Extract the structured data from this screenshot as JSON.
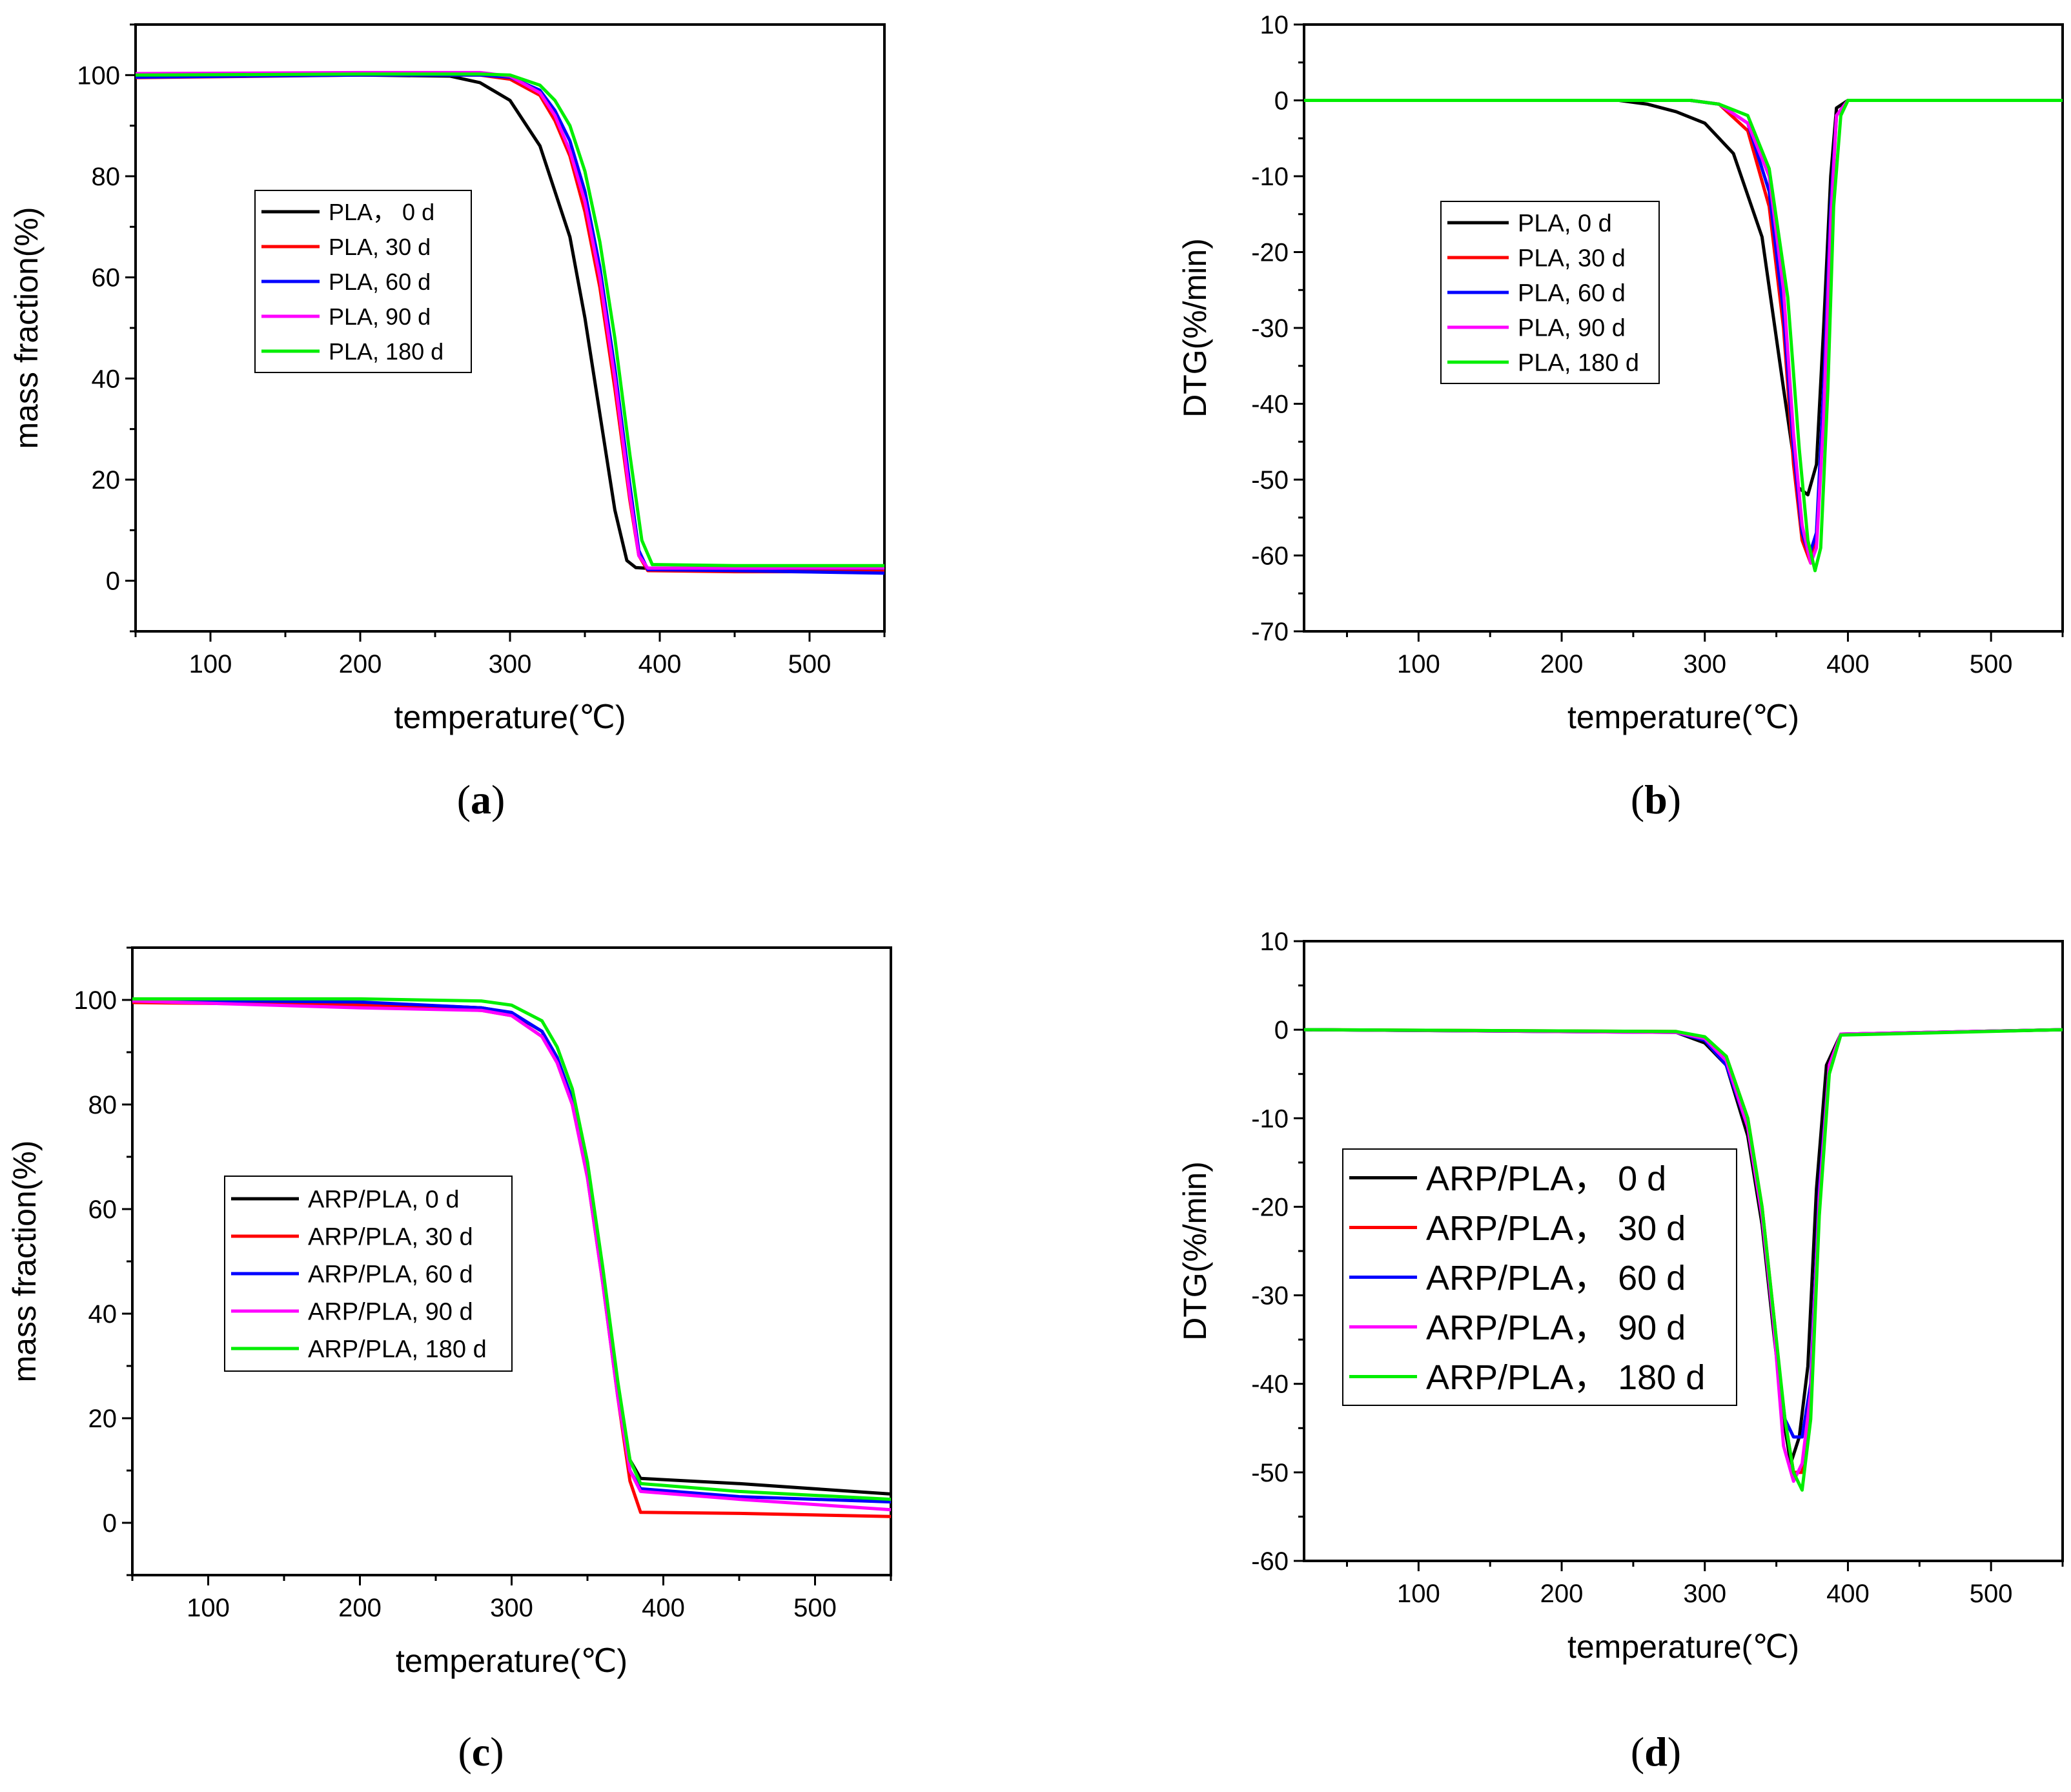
{
  "colors": {
    "0 d": "#000000",
    "30 d": "#ff0000",
    "60 d": "#0000ff",
    "90 d": "#ff00ff",
    "180 d": "#00ee00"
  },
  "chart_data": [
    {
      "id": "a",
      "caption": "a",
      "type": "line",
      "xlabel": "temperature(℃)",
      "ylabel": "mass fraction(%)",
      "xlim": [
        50,
        550
      ],
      "ylim": [
        -10,
        110
      ],
      "xticks": [
        100,
        200,
        300,
        400,
        500
      ],
      "yticks": [
        0,
        20,
        40,
        60,
        80,
        100
      ],
      "legend": "upper-left-center",
      "series": [
        {
          "name": "PLA， 0 d",
          "key": "0 d",
          "x": [
            50,
            200,
            260,
            280,
            300,
            320,
            340,
            350,
            360,
            370,
            378,
            384,
            390,
            450,
            550
          ],
          "y": [
            100,
            100,
            99.8,
            98.5,
            95,
            86,
            68,
            52,
            33,
            14,
            4,
            2.6,
            2.5,
            2.3,
            2.2
          ]
        },
        {
          "name": "PLA, 30 d",
          "key": "30 d",
          "x": [
            50,
            200,
            280,
            300,
            320,
            330,
            340,
            350,
            360,
            370,
            380,
            386,
            392,
            450,
            550
          ],
          "y": [
            99.5,
            100,
            100,
            99.2,
            96,
            91,
            84,
            73,
            58,
            38,
            16,
            5,
            2,
            1.8,
            1.8
          ]
        },
        {
          "name": "PLA, 60 d",
          "key": "60 d",
          "x": [
            50,
            200,
            280,
            300,
            320,
            330,
            340,
            350,
            360,
            370,
            380,
            386,
            392,
            450,
            550
          ],
          "y": [
            99.6,
            100,
            100,
            99.6,
            97,
            93,
            87,
            77,
            62,
            42,
            19,
            6,
            2.2,
            2,
            1.5
          ]
        },
        {
          "name": "PLA, 90 d",
          "key": "90 d",
          "x": [
            50,
            200,
            280,
            300,
            320,
            330,
            340,
            350,
            360,
            370,
            380,
            386,
            392,
            450,
            550
          ],
          "y": [
            100.3,
            100.5,
            100.5,
            99.8,
            96.5,
            92,
            85,
            75,
            60,
            40,
            17,
            5,
            2.5,
            2.5,
            2.5
          ]
        },
        {
          "name": "PLA, 180 d",
          "key": "180 d",
          "x": [
            50,
            200,
            280,
            300,
            320,
            330,
            340,
            350,
            360,
            370,
            380,
            388,
            395,
            450,
            550
          ],
          "y": [
            100,
            100.2,
            100.2,
            100,
            98,
            95,
            90,
            81,
            67,
            48,
            25,
            8,
            3.2,
            3,
            3
          ]
        }
      ]
    },
    {
      "id": "b",
      "caption": "b",
      "type": "line",
      "xlabel": "temperature(℃)",
      "ylabel": "DTG(%/min)",
      "xlim": [
        20,
        550
      ],
      "ylim": [
        -70,
        10
      ],
      "xticks": [
        100,
        200,
        300,
        400,
        500
      ],
      "yticks": [
        10,
        0,
        -10,
        -20,
        -30,
        -40,
        -50,
        -60,
        -70
      ],
      "legend": "upper-left-center",
      "series": [
        {
          "name": "PLA, 0 d",
          "key": "0 d",
          "x": [
            20,
            240,
            260,
            280,
            300,
            320,
            340,
            355,
            365,
            372,
            378,
            383,
            388,
            392,
            400,
            550
          ],
          "y": [
            0,
            0,
            -0.5,
            -1.5,
            -3,
            -7,
            -18,
            -38,
            -51,
            -52,
            -48,
            -30,
            -10,
            -1,
            0,
            0
          ]
        },
        {
          "name": "PLA, 30 d",
          "key": "30 d",
          "x": [
            20,
            290,
            310,
            330,
            345,
            355,
            362,
            368,
            374,
            378,
            383,
            388,
            392,
            400,
            550
          ],
          "y": [
            0,
            0,
            -0.5,
            -4,
            -14,
            -30,
            -48,
            -58,
            -61,
            -58,
            -40,
            -15,
            -2,
            0,
            0
          ]
        },
        {
          "name": "PLA, 60 d",
          "key": "60 d",
          "x": [
            20,
            290,
            310,
            330,
            345,
            355,
            362,
            368,
            373,
            378,
            383,
            388,
            392,
            400,
            550
          ],
          "y": [
            0,
            0,
            -0.5,
            -3,
            -12,
            -28,
            -46,
            -57,
            -60,
            -57,
            -38,
            -14,
            -2,
            0,
            0
          ]
        },
        {
          "name": "PLA, 90 d",
          "key": "90 d",
          "x": [
            20,
            290,
            310,
            330,
            345,
            355,
            362,
            368,
            374,
            378,
            383,
            388,
            392,
            400,
            550
          ],
          "y": [
            0,
            0,
            -0.5,
            -3,
            -10,
            -25,
            -44,
            -56,
            -61,
            -59,
            -42,
            -16,
            -2,
            0,
            0
          ]
        },
        {
          "name": "PLA, 180 d",
          "key": "180 d",
          "x": [
            20,
            290,
            310,
            330,
            345,
            358,
            366,
            372,
            377,
            381,
            386,
            390,
            395,
            400,
            550
          ],
          "y": [
            0,
            0,
            -0.5,
            -2,
            -9,
            -26,
            -46,
            -58,
            -62,
            -59,
            -38,
            -14,
            -2,
            0,
            0
          ]
        }
      ]
    },
    {
      "id": "c",
      "caption": "c",
      "type": "line",
      "xlabel": "temperature(℃)",
      "ylabel": "mass fraction(%)",
      "xlim": [
        50,
        550
      ],
      "ylim": [
        -10,
        110
      ],
      "xticks": [
        100,
        200,
        300,
        400,
        500
      ],
      "yticks": [
        0,
        20,
        40,
        60,
        80,
        100
      ],
      "legend": "center-left",
      "series": [
        {
          "name": "ARP/PLA, 0 d",
          "key": "0 d",
          "x": [
            50,
            200,
            280,
            300,
            320,
            330,
            340,
            350,
            360,
            370,
            378,
            385,
            450,
            550
          ],
          "y": [
            100,
            99.5,
            98.5,
            97.5,
            94,
            89,
            81,
            67,
            47,
            25,
            12,
            8.5,
            7.5,
            5.5
          ]
        },
        {
          "name": "ARP/PLA, 30 d",
          "key": "30 d",
          "x": [
            50,
            200,
            280,
            300,
            320,
            330,
            340,
            350,
            360,
            370,
            378,
            385,
            450,
            550
          ],
          "y": [
            99.5,
            99,
            98,
            97,
            93,
            88,
            80,
            66,
            46,
            24,
            8,
            2,
            1.8,
            1.2
          ]
        },
        {
          "name": "ARP/PLA, 60 d",
          "key": "60 d",
          "x": [
            50,
            200,
            280,
            300,
            320,
            330,
            340,
            350,
            360,
            370,
            378,
            385,
            450,
            550
          ],
          "y": [
            100,
            99.6,
            98.5,
            97.6,
            94,
            89,
            81,
            67,
            47,
            25,
            10,
            6.5,
            5,
            4
          ]
        },
        {
          "name": "ARP/PLA, 90 d",
          "key": "90 d",
          "x": [
            50,
            200,
            280,
            300,
            320,
            330,
            340,
            350,
            360,
            370,
            378,
            385,
            450,
            550
          ],
          "y": [
            99.8,
            98.5,
            98,
            97,
            93,
            88,
            80,
            66,
            46,
            24,
            10,
            6,
            4.5,
            2.5
          ]
        },
        {
          "name": "ARP/PLA, 180 d",
          "key": "180 d",
          "x": [
            50,
            200,
            280,
            300,
            320,
            330,
            340,
            350,
            360,
            370,
            378,
            385,
            450,
            550
          ],
          "y": [
            100.2,
            100.2,
            99.8,
            99,
            96,
            91,
            83,
            69,
            49,
            27,
            12,
            7.5,
            6,
            4.5
          ]
        }
      ]
    },
    {
      "id": "d",
      "caption": "d",
      "type": "line",
      "xlabel": "temperature(℃)",
      "ylabel": "DTG(%/min)",
      "xlim": [
        20,
        550
      ],
      "ylim": [
        -60,
        10
      ],
      "xticks": [
        100,
        200,
        300,
        400,
        500
      ],
      "yticks": [
        10,
        0,
        -10,
        -20,
        -30,
        -40,
        -50,
        -60
      ],
      "legend": "center-left",
      "series": [
        {
          "name": "ARP/PLA， 0 d",
          "key": "0 d",
          "x": [
            20,
            280,
            300,
            315,
            330,
            340,
            348,
            355,
            360,
            366,
            372,
            378,
            385,
            395,
            550
          ],
          "y": [
            0,
            -0.3,
            -1.5,
            -4,
            -12,
            -22,
            -34,
            -44,
            -49,
            -46,
            -38,
            -18,
            -4,
            -0.5,
            0
          ]
        },
        {
          "name": "ARP/PLA， 30 d",
          "key": "30 d",
          "x": [
            20,
            280,
            300,
            315,
            330,
            340,
            348,
            355,
            362,
            368,
            374,
            380,
            387,
            395,
            550
          ],
          "y": [
            0,
            -0.2,
            -1,
            -3,
            -10,
            -20,
            -32,
            -43,
            -50,
            -50,
            -42,
            -20,
            -4,
            -0.5,
            0
          ]
        },
        {
          "name": "ARP/PLA， 60 d",
          "key": "60 d",
          "x": [
            20,
            280,
            300,
            315,
            330,
            340,
            348,
            356,
            362,
            368,
            374,
            380,
            387,
            395,
            550
          ],
          "y": [
            0,
            -0.3,
            -1.2,
            -4,
            -11,
            -21,
            -33,
            -44,
            -46,
            -46,
            -40,
            -18,
            -4,
            -0.5,
            0
          ]
        },
        {
          "name": "ARP/PLA， 90 d",
          "key": "90 d",
          "x": [
            20,
            280,
            300,
            315,
            330,
            340,
            348,
            355,
            362,
            368,
            374,
            380,
            387,
            395,
            550
          ],
          "y": [
            0,
            -0.3,
            -1,
            -3.5,
            -11,
            -21,
            -33,
            -47,
            -51,
            -49,
            -41,
            -19,
            -4,
            -0.5,
            0
          ]
        },
        {
          "name": "ARP/PLA， 180 d",
          "key": "180 d",
          "x": [
            20,
            280,
            300,
            315,
            330,
            340,
            348,
            356,
            362,
            368,
            374,
            380,
            387,
            395,
            550
          ],
          "y": [
            0,
            -0.2,
            -0.8,
            -3,
            -10,
            -20,
            -32,
            -44,
            -50,
            -52,
            -44,
            -21,
            -5,
            -0.6,
            0
          ]
        }
      ]
    }
  ]
}
